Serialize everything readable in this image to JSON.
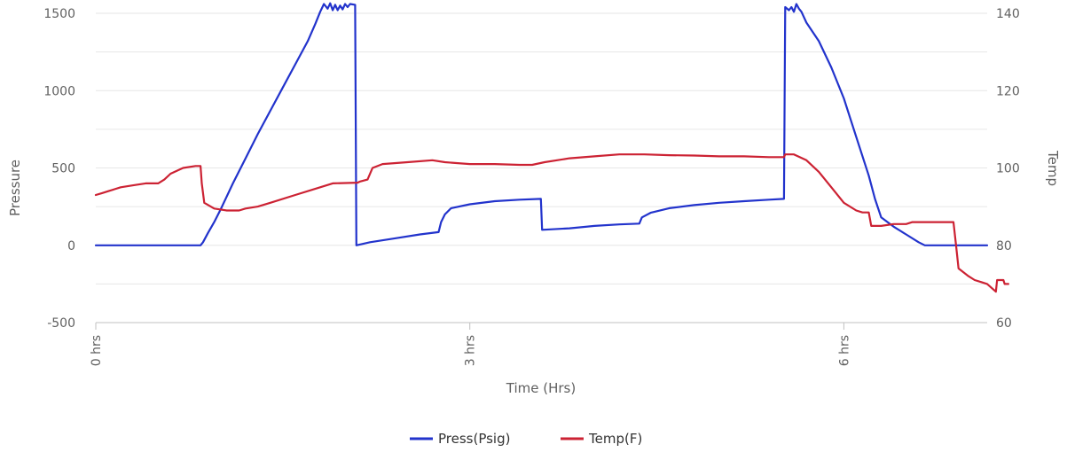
{
  "chart_data": {
    "type": "line",
    "title": "",
    "xlabel": "Time (Hrs)",
    "ylabel_left": "Pressure",
    "ylabel_right": "Temp",
    "x_ticks": [
      {
        "value": 0,
        "label": "0 hrs"
      },
      {
        "value": 3,
        "label": "3 hrs"
      },
      {
        "value": 6,
        "label": "6 hrs"
      }
    ],
    "xlim": [
      0,
      7.15
    ],
    "y_left_ticks": [
      "-500",
      "0",
      "500",
      "1000",
      "1500"
    ],
    "ylim_left": [
      -500,
      1500
    ],
    "y_right_ticks": [
      "60",
      "80",
      "100",
      "120",
      "140"
    ],
    "ylim_right": [
      60,
      140
    ],
    "grid": true,
    "legend_position": "bottom-center",
    "series": [
      {
        "name": "Press(Psig)",
        "axis": "left",
        "color": "#2233cc",
        "points": [
          [
            0,
            0
          ],
          [
            0.84,
            0
          ],
          [
            0.86,
            20
          ],
          [
            0.9,
            80
          ],
          [
            0.95,
            150
          ],
          [
            1.0,
            230
          ],
          [
            1.1,
            400
          ],
          [
            1.2,
            560
          ],
          [
            1.3,
            720
          ],
          [
            1.4,
            870
          ],
          [
            1.5,
            1020
          ],
          [
            1.6,
            1170
          ],
          [
            1.7,
            1320
          ],
          [
            1.76,
            1430
          ],
          [
            1.8,
            1510
          ],
          [
            1.83,
            1560
          ],
          [
            1.86,
            1530
          ],
          [
            1.88,
            1565
          ],
          [
            1.9,
            1520
          ],
          [
            1.92,
            1555
          ],
          [
            1.94,
            1520
          ],
          [
            1.96,
            1550
          ],
          [
            1.98,
            1525
          ],
          [
            2.0,
            1560
          ],
          [
            2.02,
            1540
          ],
          [
            2.04,
            1560
          ],
          [
            2.08,
            1555
          ],
          [
            2.09,
            0
          ],
          [
            2.2,
            20
          ],
          [
            2.4,
            45
          ],
          [
            2.6,
            70
          ],
          [
            2.75,
            85
          ],
          [
            2.77,
            150
          ],
          [
            2.8,
            200
          ],
          [
            2.85,
            240
          ],
          [
            3.0,
            265
          ],
          [
            3.2,
            285
          ],
          [
            3.4,
            295
          ],
          [
            3.57,
            300
          ],
          [
            3.58,
            100
          ],
          [
            3.8,
            110
          ],
          [
            4.0,
            125
          ],
          [
            4.2,
            135
          ],
          [
            4.36,
            140
          ],
          [
            4.38,
            180
          ],
          [
            4.45,
            210
          ],
          [
            4.6,
            240
          ],
          [
            4.8,
            260
          ],
          [
            5.0,
            275
          ],
          [
            5.2,
            285
          ],
          [
            5.4,
            295
          ],
          [
            5.52,
            300
          ],
          [
            5.53,
            1540
          ],
          [
            5.56,
            1520
          ],
          [
            5.58,
            1540
          ],
          [
            5.6,
            1510
          ],
          [
            5.62,
            1560
          ],
          [
            5.64,
            1530
          ],
          [
            5.66,
            1510
          ],
          [
            5.7,
            1440
          ],
          [
            5.8,
            1320
          ],
          [
            5.9,
            1150
          ],
          [
            6.0,
            950
          ],
          [
            6.1,
            700
          ],
          [
            6.2,
            450
          ],
          [
            6.25,
            300
          ],
          [
            6.3,
            180
          ],
          [
            6.4,
            120
          ],
          [
            6.5,
            70
          ],
          [
            6.6,
            20
          ],
          [
            6.65,
            0
          ],
          [
            7.15,
            0
          ]
        ]
      },
      {
        "name": "Temp(F)",
        "axis": "right",
        "color": "#cc2233",
        "points": [
          [
            0,
            93
          ],
          [
            0.05,
            93.5
          ],
          [
            0.1,
            94
          ],
          [
            0.15,
            94.5
          ],
          [
            0.2,
            95
          ],
          [
            0.3,
            95.5
          ],
          [
            0.4,
            96
          ],
          [
            0.5,
            96
          ],
          [
            0.55,
            97
          ],
          [
            0.6,
            98.5
          ],
          [
            0.7,
            100
          ],
          [
            0.8,
            100.5
          ],
          [
            0.84,
            100.5
          ],
          [
            0.85,
            96
          ],
          [
            0.87,
            91
          ],
          [
            0.95,
            89.5
          ],
          [
            1.05,
            89
          ],
          [
            1.15,
            89
          ],
          [
            1.2,
            89.5
          ],
          [
            1.3,
            90
          ],
          [
            1.4,
            91
          ],
          [
            1.6,
            93
          ],
          [
            1.8,
            95
          ],
          [
            1.9,
            96
          ],
          [
            2.1,
            96.2
          ],
          [
            2.12,
            96.5
          ],
          [
            2.18,
            97
          ],
          [
            2.22,
            100
          ],
          [
            2.3,
            101
          ],
          [
            2.5,
            101.5
          ],
          [
            2.7,
            102
          ],
          [
            2.8,
            101.5
          ],
          [
            3.0,
            101
          ],
          [
            3.2,
            101
          ],
          [
            3.4,
            100.8
          ],
          [
            3.5,
            100.8
          ],
          [
            3.6,
            101.5
          ],
          [
            3.8,
            102.5
          ],
          [
            4.0,
            103
          ],
          [
            4.2,
            103.5
          ],
          [
            4.4,
            103.5
          ],
          [
            4.6,
            103.3
          ],
          [
            4.8,
            103.2
          ],
          [
            5.0,
            103
          ],
          [
            5.2,
            103
          ],
          [
            5.4,
            102.8
          ],
          [
            5.52,
            102.8
          ],
          [
            5.53,
            103.5
          ],
          [
            5.6,
            103.5
          ],
          [
            5.7,
            102
          ],
          [
            5.8,
            99
          ],
          [
            5.9,
            95
          ],
          [
            6.0,
            91
          ],
          [
            6.1,
            89
          ],
          [
            6.15,
            88.5
          ],
          [
            6.2,
            88.5
          ],
          [
            6.22,
            85
          ],
          [
            6.3,
            85
          ],
          [
            6.4,
            85.5
          ],
          [
            6.5,
            85.5
          ],
          [
            6.55,
            86
          ],
          [
            6.6,
            86
          ],
          [
            6.8,
            86
          ],
          [
            6.88,
            86
          ],
          [
            6.9,
            80
          ],
          [
            6.92,
            74
          ],
          [
            7.0,
            72
          ],
          [
            7.05,
            71
          ],
          [
            7.1,
            70.5
          ],
          [
            7.15,
            70
          ],
          [
            7.22,
            68
          ],
          [
            7.23,
            71
          ],
          [
            7.28,
            71
          ],
          [
            7.29,
            70
          ],
          [
            7.32,
            70
          ]
        ]
      }
    ]
  }
}
